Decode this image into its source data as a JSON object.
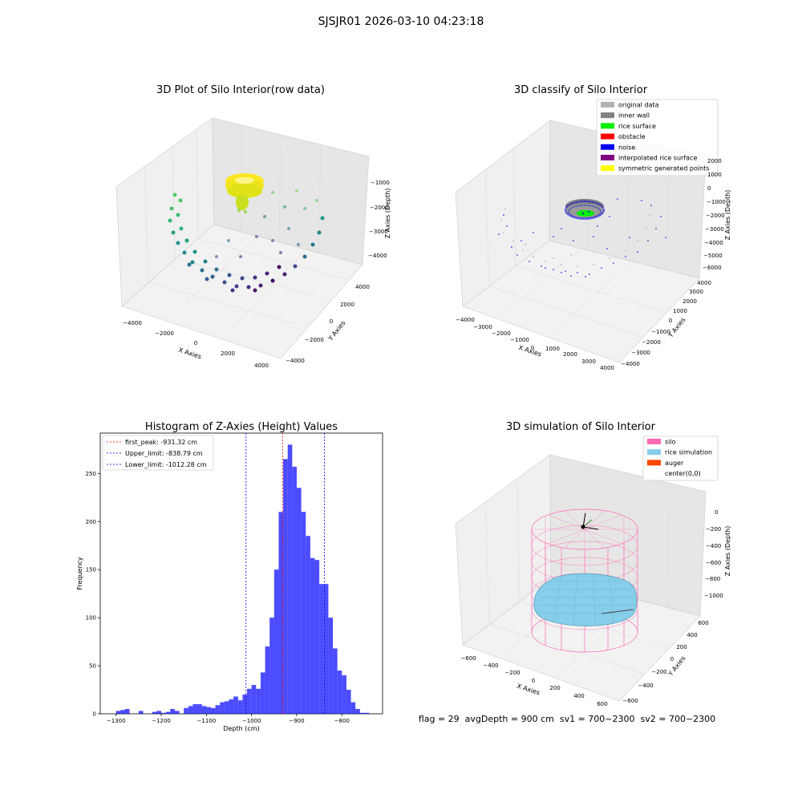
{
  "figure": {
    "suptitle": "SJSJR01 2026-03-10 04:23:18"
  },
  "panel1": {
    "title": "3D Plot of Silo Interior(row data)",
    "xlabel": "X Axies",
    "ylabel": "Y Axies",
    "zlabel": "Z Axies (Depth)",
    "xticks": [
      "−4000",
      "−2000",
      "0",
      "2000",
      "4000"
    ],
    "yticks": [
      "−4000",
      "−2000",
      "0",
      "2000",
      "4000"
    ],
    "zticks": [
      "−1000",
      "−2000",
      "−3000",
      "−4000"
    ]
  },
  "panel2": {
    "title": "3D classify of Silo Interior",
    "xlabel": "X Axies",
    "ylabel": "Y Axies",
    "zlabel": "Z Axies (Depth)",
    "xticks": [
      "−4000",
      "−3000",
      "−2000",
      "−1000",
      "0",
      "1000",
      "2000",
      "3000",
      "4000"
    ],
    "yticks": [
      "−4000",
      "−3000",
      "−2000",
      "−1000",
      "0",
      "1000",
      "2000",
      "3000",
      "4000"
    ],
    "zticks": [
      "2000",
      "1000",
      "0",
      "−1000",
      "−2000",
      "−3000",
      "−4000",
      "−5000",
      "−6000"
    ],
    "legend": [
      {
        "label": "original data",
        "color": "#b3b3b3"
      },
      {
        "label": "inner wall",
        "color": "#808080"
      },
      {
        "label": "rice surface",
        "color": "#00ee00"
      },
      {
        "label": "obstacle",
        "color": "#ff0000"
      },
      {
        "label": "noise",
        "color": "#0000ee"
      },
      {
        "label": "interpolated rice surface",
        "color": "#800080"
      },
      {
        "label": "symmetric generated points",
        "color": "#ffff00"
      }
    ]
  },
  "panel3": {
    "title": "Histogram of Z-Axies (Height) Values",
    "xlabel": "Depth (cm)",
    "ylabel": "Frequency",
    "xticks": [
      "−1300",
      "−1200",
      "−1100",
      "−1000",
      "−900",
      "−800"
    ],
    "yticks": [
      "0",
      "50",
      "100",
      "150",
      "200",
      "250"
    ],
    "legend": [
      {
        "label": "first_peak: -931.32 cm",
        "color": "#ff0000"
      },
      {
        "label": "Upper_limit: -838.79 cm",
        "color": "#0000ff"
      },
      {
        "label": "Lower_limit: -1012.28 cm",
        "color": "#0000ff"
      }
    ]
  },
  "panel4": {
    "title": "3D simulation of Silo Interior",
    "xlabel": "X Axies",
    "ylabel": "Y Axies",
    "zlabel": "Z Axies (Depth)",
    "xticks": [
      "−600",
      "−400",
      "−200",
      "0",
      "200",
      "400",
      "600"
    ],
    "yticks": [
      "−600",
      "−400",
      "−200",
      "0",
      "200",
      "400",
      "600"
    ],
    "zticks": [
      "0",
      "−200",
      "−400",
      "−600",
      "−800",
      "−1000"
    ],
    "legend": [
      {
        "label": "silo",
        "color": "#ff69b4"
      },
      {
        "label": "rice simulation",
        "color": "#87ceeb"
      },
      {
        "label": "auger",
        "color": "#ff4500"
      },
      {
        "label": "center(0,0)",
        "color": "#ffffff"
      }
    ]
  },
  "status_line": "flag = 29  avgDepth = 900 cm  sv1 = 700~2300  sv2 = 700~2300",
  "chart_data": [
    {
      "type": "scatter",
      "dimensions": 3,
      "title": "3D Plot of Silo Interior(row data)",
      "xlabel": "X Axies",
      "ylabel": "Y Axies",
      "zlabel": "Z Axies (Depth)",
      "xlim": [
        -4500,
        4500
      ],
      "ylim": [
        -4500,
        4500
      ],
      "zlim": [
        -4800,
        -500
      ],
      "colormap": "viridis",
      "grid": true
    },
    {
      "type": "scatter",
      "dimensions": 3,
      "title": "3D classify of Silo Interior",
      "xlabel": "X Axies",
      "ylabel": "Y Axies",
      "zlabel": "Z Axies (Depth)",
      "xlim": [
        -4000,
        4000
      ],
      "ylim": [
        -4000,
        4000
      ],
      "zlim": [
        -6500,
        2500
      ],
      "series": [
        {
          "name": "original data"
        },
        {
          "name": "inner wall"
        },
        {
          "name": "rice surface"
        },
        {
          "name": "obstacle"
        },
        {
          "name": "noise"
        },
        {
          "name": "interpolated rice surface"
        },
        {
          "name": "symmetric generated points"
        }
      ],
      "legend": "top-right",
      "grid": true
    },
    {
      "type": "bar",
      "title": "Histogram of Z-Axies (Height) Values",
      "xlabel": "Depth (cm)",
      "ylabel": "Frequency",
      "xlim": [
        -1335,
        -710
      ],
      "ylim": [
        0,
        292
      ],
      "bin_start": -1300,
      "bin_width": 10,
      "values": [
        3,
        4,
        5,
        0,
        0,
        3,
        0,
        0,
        2,
        3,
        1,
        2,
        5,
        3,
        0,
        6,
        8,
        10,
        10,
        8,
        7,
        6,
        9,
        12,
        13,
        15,
        18,
        14,
        20,
        26,
        30,
        26,
        43,
        70,
        100,
        150,
        210,
        265,
        280,
        257,
        235,
        210,
        185,
        162,
        160,
        135,
        135,
        100,
        68,
        45,
        40,
        25,
        12,
        5,
        1,
        1
      ],
      "vlines": [
        {
          "name": "first_peak",
          "x": -931.32,
          "color": "#ff0000"
        },
        {
          "name": "Upper_limit",
          "x": -838.79,
          "color": "#0000ff"
        },
        {
          "name": "Lower_limit",
          "x": -1012.28,
          "color": "#0000ff"
        }
      ],
      "legend": "top-left",
      "grid": false
    },
    {
      "type": "surface",
      "dimensions": 3,
      "title": "3D simulation of Silo Interior",
      "xlabel": "X Axies",
      "ylabel": "Y Axies",
      "zlabel": "Z Axies (Depth)",
      "xlim": [
        -700,
        700
      ],
      "ylim": [
        -700,
        700
      ],
      "zlim": [
        -1150,
        100
      ],
      "series": [
        {
          "name": "silo"
        },
        {
          "name": "rice simulation"
        },
        {
          "name": "auger"
        },
        {
          "name": "center(0,0)"
        }
      ],
      "legend": "top-right",
      "grid": true
    }
  ]
}
